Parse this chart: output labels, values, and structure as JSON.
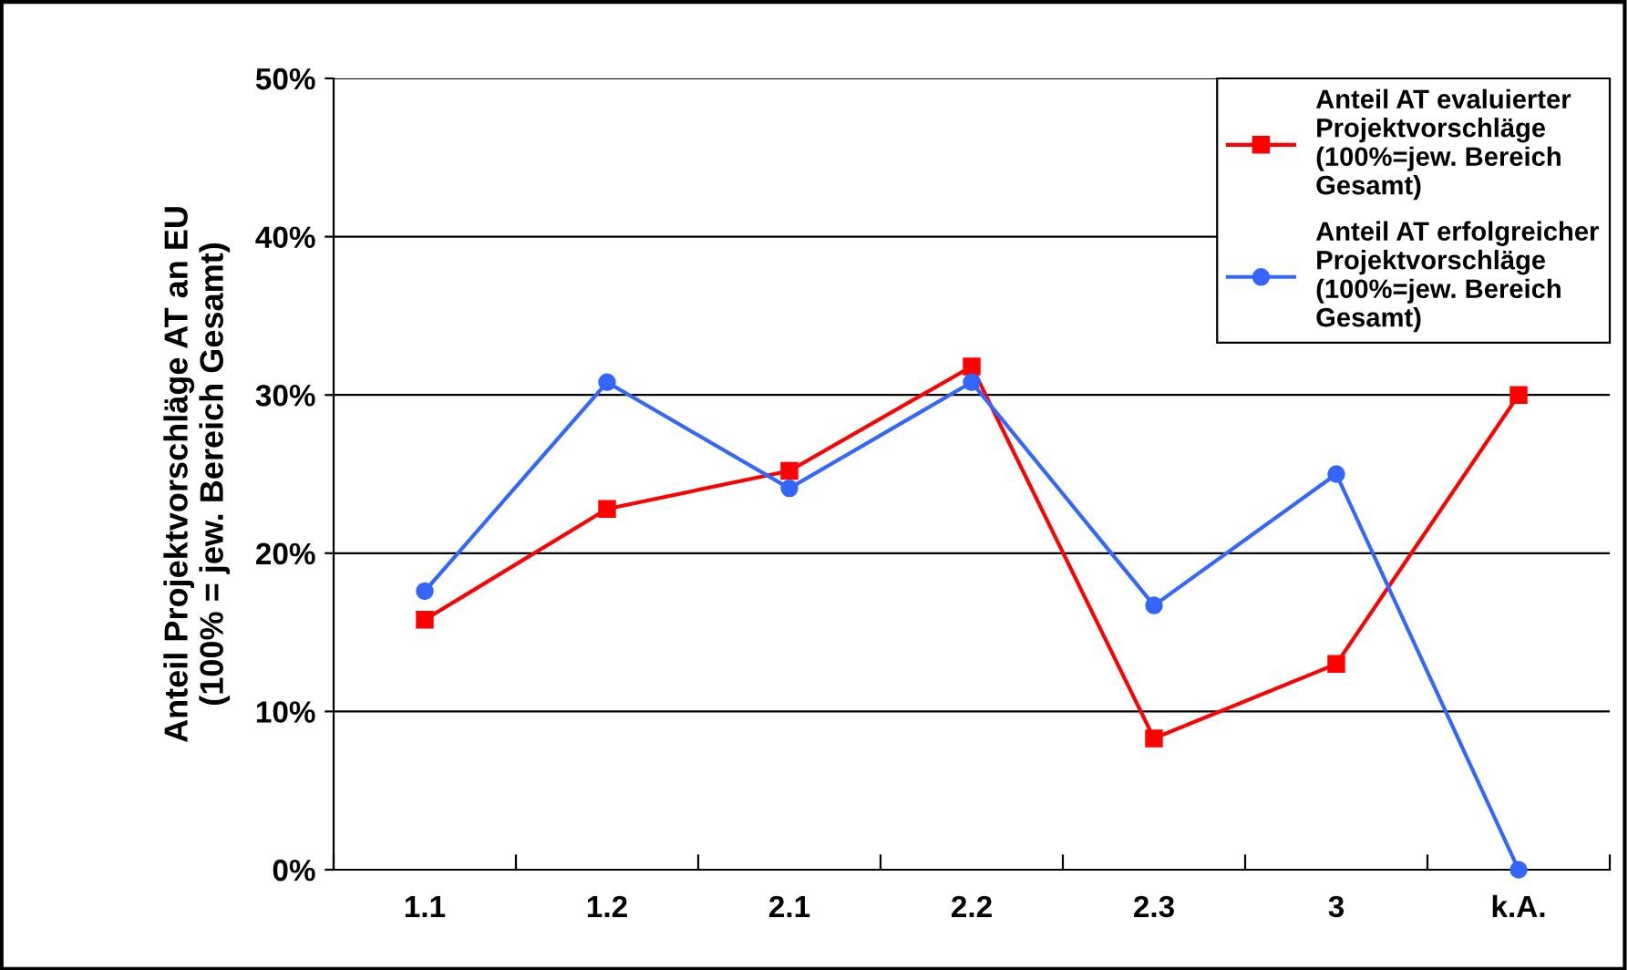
{
  "chart_data": {
    "type": "line",
    "ylabel": "Anteil Projektvorschläge AT an EU\n(100% = jew. Bereich Gesamt)",
    "categories": [
      "1.1",
      "1.2",
      "2.1",
      "2.2",
      "2.3",
      "3",
      "k.A."
    ],
    "series": [
      {
        "name": "Anteil AT evaluierter\nProjektvorschläge\n(100%=jew. Bereich\nGesamt)",
        "color": "#ff0000",
        "marker": "square",
        "values": [
          15.8,
          22.8,
          25.2,
          31.8,
          8.3,
          13.0,
          30.0
        ]
      },
      {
        "name": "Anteil AT erfolgreicher\nProjektvorschläge\n(100%=jew. Bereich\nGesamt)",
        "color": "#3366ff",
        "marker": "circle",
        "values": [
          17.6,
          30.8,
          24.1,
          30.8,
          16.7,
          25.0,
          0
        ]
      }
    ],
    "ylim": [
      0,
      50
    ],
    "yticks": [
      {
        "value": 0,
        "label": "0%"
      },
      {
        "value": 10,
        "label": "10%"
      },
      {
        "value": 20,
        "label": "20%"
      },
      {
        "value": 30,
        "label": "30%"
      },
      {
        "value": 40,
        "label": "40%"
      },
      {
        "value": 50,
        "label": "50%"
      }
    ],
    "grid": "y",
    "legend": "top right",
    "line_style": "solid"
  }
}
